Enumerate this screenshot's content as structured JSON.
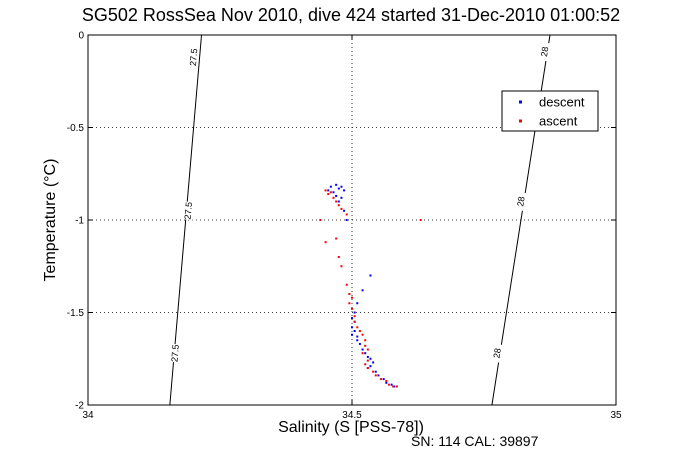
{
  "chart_data": {
    "type": "scatter",
    "title": "SG502 RossSea Nov 2010, dive 424 started 31-Dec-2010 01:00:52",
    "xlabel": "Salinity (S [PSS-78])",
    "ylabel": "Temperature (°C)",
    "footer": "SN: 114  CAL: 39897",
    "xlim": [
      34,
      35
    ],
    "ylim": [
      -2,
      0
    ],
    "xticks": [
      34,
      34.5,
      35
    ],
    "xtick_labels": [
      "34",
      "34.5",
      "35"
    ],
    "yticks": [
      0,
      -0.5,
      -1,
      -1.5,
      -2
    ],
    "ytick_labels": [
      "0",
      "-0.5",
      "-1",
      "-1.5",
      "-2"
    ],
    "grid": true,
    "legend_position": "top-right",
    "isopycnals": [
      {
        "label": "27.5",
        "points": [
          [
            34.215,
            0
          ],
          [
            34.155,
            -2
          ]
        ],
        "label_positions": [
          [
            34.2,
            -0.12
          ],
          [
            34.19,
            -0.95
          ],
          [
            34.165,
            -1.72
          ]
        ]
      },
      {
        "label": "28",
        "points": [
          [
            34.875,
            0
          ],
          [
            34.765,
            -2
          ]
        ],
        "label_positions": [
          [
            34.865,
            -0.09
          ],
          [
            34.82,
            -0.9
          ],
          [
            34.775,
            -1.72
          ]
        ]
      }
    ],
    "series": [
      {
        "name": "descent",
        "color": "#0000ff",
        "points": [
          [
            34.46,
            -0.82
          ],
          [
            34.47,
            -0.81
          ],
          [
            34.48,
            -0.82
          ],
          [
            34.455,
            -0.84
          ],
          [
            34.465,
            -0.85
          ],
          [
            34.475,
            -0.83
          ],
          [
            34.485,
            -0.84
          ],
          [
            34.47,
            -0.87
          ],
          [
            34.48,
            -0.88
          ],
          [
            34.475,
            -0.9
          ],
          [
            34.485,
            -0.95
          ],
          [
            34.49,
            -1.0
          ],
          [
            34.535,
            -1.3
          ],
          [
            34.52,
            -1.38
          ],
          [
            34.51,
            -1.45
          ],
          [
            34.505,
            -1.5
          ],
          [
            34.5,
            -1.53
          ],
          [
            34.505,
            -1.55
          ],
          [
            34.5,
            -1.58
          ],
          [
            34.505,
            -1.6
          ],
          [
            34.5,
            -1.62
          ],
          [
            34.51,
            -1.63
          ],
          [
            34.51,
            -1.65
          ],
          [
            34.515,
            -1.67
          ],
          [
            34.52,
            -1.7
          ],
          [
            34.525,
            -1.72
          ],
          [
            34.53,
            -1.74
          ],
          [
            34.535,
            -1.75
          ],
          [
            34.54,
            -1.77
          ],
          [
            34.535,
            -1.79
          ],
          [
            34.53,
            -1.8
          ],
          [
            34.545,
            -1.82
          ],
          [
            34.55,
            -1.84
          ],
          [
            34.56,
            -1.86
          ],
          [
            34.565,
            -1.88
          ],
          [
            34.575,
            -1.89
          ],
          [
            34.58,
            -1.9
          ]
        ]
      },
      {
        "name": "ascent",
        "color": "#ff0000",
        "points": [
          [
            34.45,
            -0.84
          ],
          [
            34.46,
            -0.85
          ],
          [
            34.455,
            -0.86
          ],
          [
            34.465,
            -0.88
          ],
          [
            34.47,
            -0.9
          ],
          [
            34.475,
            -0.92
          ],
          [
            34.48,
            -0.94
          ],
          [
            34.49,
            -0.97
          ],
          [
            34.44,
            -1.0
          ],
          [
            34.47,
            -1.1
          ],
          [
            34.45,
            -1.12
          ],
          [
            34.475,
            -1.2
          ],
          [
            34.48,
            -1.25
          ],
          [
            34.49,
            -1.35
          ],
          [
            34.495,
            -1.4
          ],
          [
            34.5,
            -1.42
          ],
          [
            34.495,
            -1.45
          ],
          [
            34.5,
            -1.48
          ],
          [
            34.505,
            -1.52
          ],
          [
            34.505,
            -1.55
          ],
          [
            34.51,
            -1.58
          ],
          [
            34.515,
            -1.6
          ],
          [
            34.52,
            -1.62
          ],
          [
            34.525,
            -1.65
          ],
          [
            34.525,
            -1.68
          ],
          [
            34.53,
            -1.7
          ],
          [
            34.52,
            -1.72
          ],
          [
            34.53,
            -1.76
          ],
          [
            34.525,
            -1.78
          ],
          [
            34.53,
            -1.8
          ],
          [
            34.54,
            -1.82
          ],
          [
            34.545,
            -1.84
          ],
          [
            34.555,
            -1.86
          ],
          [
            34.565,
            -1.87
          ],
          [
            34.57,
            -1.89
          ],
          [
            34.578,
            -1.9
          ],
          [
            34.585,
            -1.9
          ],
          [
            34.63,
            -1.0
          ]
        ]
      }
    ]
  }
}
